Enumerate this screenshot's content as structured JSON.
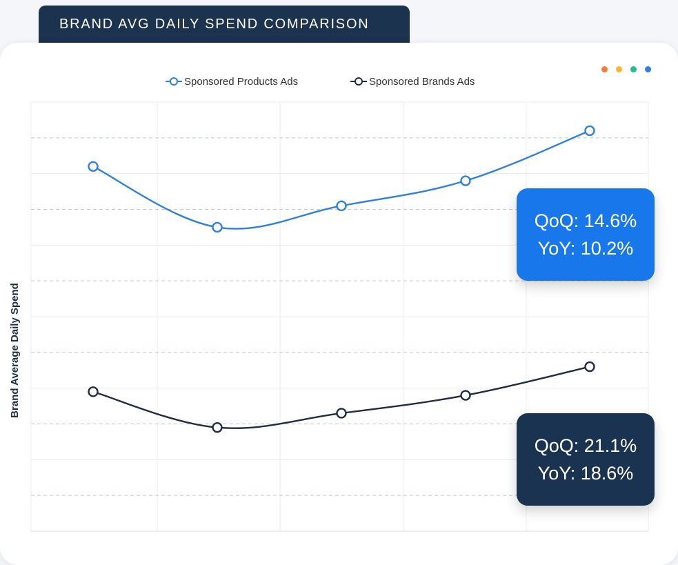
{
  "title": "BRAND AVG DAILY SPEND COMPARISON",
  "colors": {
    "title_bg": "#1c3350",
    "series_products": "#2f7fe0",
    "series_brands": "#1c2d44",
    "callout_blue": "#1877ea",
    "callout_navy": "#1a3350",
    "dots": [
      "#f47c3c",
      "#f5b82e",
      "#1fbf8f",
      "#2f7fe0"
    ]
  },
  "window_dots": [
    "orange-dot",
    "yellow-dot",
    "green-dot",
    "blue-dot"
  ],
  "chart_data": {
    "type": "line",
    "title": "",
    "xlabel": "",
    "ylabel": "Brand Average Daily Spend",
    "x": [
      1,
      2,
      3,
      4,
      5
    ],
    "ylim": [
      0,
      12
    ],
    "grid": true,
    "legend_position": "top-center",
    "series": [
      {
        "name": "Sponsored Products Ads",
        "values": [
          10.2,
          8.5,
          9.1,
          9.8,
          11.2
        ]
      },
      {
        "name": "Sponsored Brands Ads",
        "values": [
          3.9,
          2.9,
          3.3,
          3.8,
          4.6
        ]
      }
    ]
  },
  "callouts": {
    "products": {
      "qoq": "QoQ: 14.6%",
      "yoy": "YoY: 10.2%"
    },
    "brands": {
      "qoq": "QoQ: 21.1%",
      "yoy": "YoY: 18.6%"
    }
  }
}
